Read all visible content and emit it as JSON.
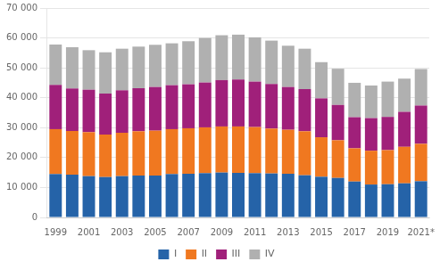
{
  "chart_data": {
    "type": "bar",
    "stacked": true,
    "categories": [
      "1999",
      null,
      "2001",
      null,
      "2003",
      null,
      "2005",
      null,
      "2007",
      null,
      "2009",
      null,
      "2011",
      null,
      "2013",
      null,
      "2015",
      null,
      "2017",
      null,
      "2019",
      null,
      "2021*"
    ],
    "series": [
      {
        "name": "I",
        "color": "#2563a8",
        "values": [
          14500,
          14300,
          13800,
          13500,
          13800,
          14000,
          14000,
          14500,
          14600,
          14800,
          15000,
          14900,
          14800,
          14700,
          14600,
          14100,
          13600,
          13200,
          12000,
          11000,
          11100,
          11400,
          12100
        ]
      },
      {
        "name": "II",
        "color": "#f07820",
        "values": [
          15000,
          14600,
          14700,
          14200,
          14500,
          14800,
          15000,
          15000,
          15200,
          15300,
          15400,
          15500,
          15400,
          15000,
          14700,
          14700,
          13200,
          12600,
          11100,
          11300,
          11400,
          12200,
          12500
        ]
      },
      {
        "name": "III",
        "color": "#a0207a",
        "values": [
          14800,
          14200,
          14200,
          13700,
          14200,
          14400,
          14600,
          14700,
          14700,
          15000,
          15500,
          15700,
          15200,
          14900,
          14300,
          14100,
          13000,
          11800,
          10400,
          10900,
          11100,
          11700,
          12800
        ]
      },
      {
        "name": "IV",
        "color": "#b0b0b0",
        "values": [
          13500,
          13800,
          13200,
          13800,
          13900,
          13900,
          14100,
          14000,
          14400,
          14900,
          15000,
          15000,
          14800,
          14500,
          13800,
          13500,
          12100,
          12100,
          11500,
          10900,
          11800,
          11100,
          12200
        ]
      }
    ],
    "ylim": [
      0,
      70000
    ],
    "yticks": [
      0,
      {
        "value": 10000,
        "label": "10 000"
      },
      {
        "value": 20000,
        "label": "20 000"
      },
      {
        "value": 30000,
        "label": "30 000"
      },
      {
        "value": 40000,
        "label": "40 000"
      },
      {
        "value": 50000,
        "label": "50 000"
      },
      {
        "value": 60000,
        "label": "60 000"
      },
      {
        "value": 70000,
        "label": "70 000"
      }
    ],
    "grid": true,
    "legend": "bottom"
  }
}
